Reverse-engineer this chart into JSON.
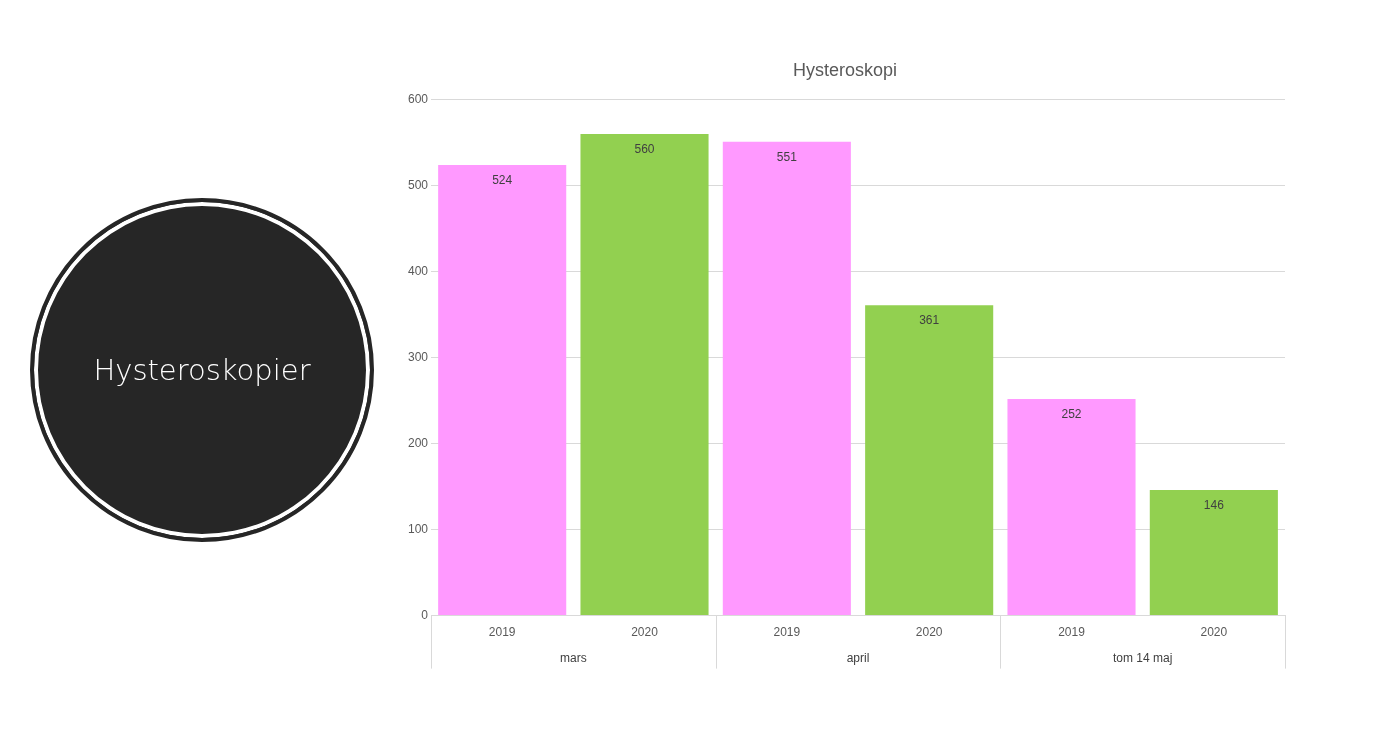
{
  "chart_data": [
    {
      "type": "other",
      "title": "Hysteroskopier"
    },
    {
      "type": "bar",
      "title": "Hysteroskopi",
      "categories": [
        "2019",
        "2020",
        "2019",
        "2020",
        "2019",
        "2020"
      ],
      "values": [
        524,
        560,
        551,
        361,
        252,
        146
      ],
      "colors": [
        "#ff99ff",
        "#92d050",
        "#ff99ff",
        "#92d050",
        "#ff99ff",
        "#92d050"
      ],
      "ylim": [
        0,
        600
      ],
      "yticks": [
        0,
        100,
        200,
        300,
        400,
        500,
        600
      ],
      "grid": "y",
      "legend": false,
      "data_labels": true,
      "annotations": [
        "mars",
        "april",
        "tom 14 maj"
      ]
    }
  ]
}
